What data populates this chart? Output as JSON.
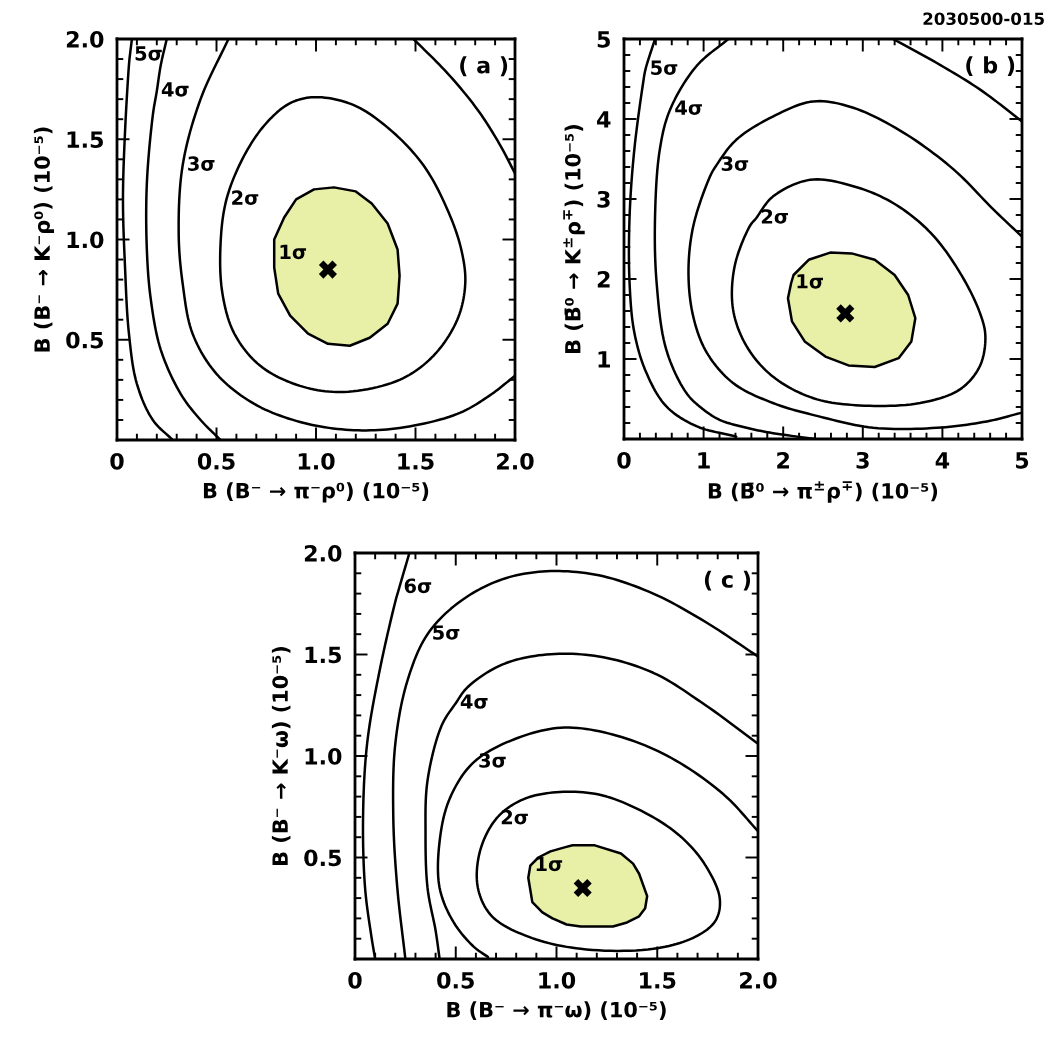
{
  "chart_data": [
    {
      "type": "line",
      "xlabel": "B (B⁻ → π⁻ρ⁰) (10⁻⁵)",
      "ylabel": "B (B⁻ → K⁻ρ⁰) (10⁻⁵)",
      "xlim": [
        0,
        2
      ],
      "ylim": [
        0,
        2
      ],
      "xticks": [
        0,
        {
          "value": 0.1,
          "label": null
        },
        {
          "value": 0.2,
          "label": null
        },
        {
          "value": 0.3,
          "label": null
        },
        {
          "value": 0.4,
          "label": null
        },
        0.5,
        {
          "value": 0.6,
          "label": null
        },
        {
          "value": 0.7,
          "label": null
        },
        {
          "value": 0.8,
          "label": null
        },
        {
          "value": 0.9,
          "label": null
        },
        {
          "value": 1,
          "label": "1.0"
        },
        {
          "value": 1.1,
          "label": null
        },
        {
          "value": 1.2,
          "label": null
        },
        {
          "value": 1.3,
          "label": null
        },
        {
          "value": 1.4,
          "label": null
        },
        1.5,
        {
          "value": 1.6,
          "label": null
        },
        {
          "value": 1.7,
          "label": null
        },
        {
          "value": 1.8,
          "label": null
        },
        {
          "value": 1.9,
          "label": null
        },
        {
          "value": 2,
          "label": "2.0"
        }
      ],
      "yticks": [
        {
          "value": 0.1,
          "label": null
        },
        {
          "value": 0.2,
          "label": null
        },
        {
          "value": 0.3,
          "label": null
        },
        {
          "value": 0.4,
          "label": null
        },
        0.5,
        {
          "value": 0.6,
          "label": null
        },
        {
          "value": 0.7,
          "label": null
        },
        {
          "value": 0.8,
          "label": null
        },
        {
          "value": 0.9,
          "label": null
        },
        {
          "value": 1,
          "label": "1.0"
        },
        {
          "value": 1.1,
          "label": null
        },
        {
          "value": 1.2,
          "label": null
        },
        {
          "value": 1.3,
          "label": null
        },
        {
          "value": 1.4,
          "label": null
        },
        1.5,
        {
          "value": 1.6,
          "label": null
        },
        {
          "value": 1.7,
          "label": null
        },
        {
          "value": 1.8,
          "label": null
        },
        {
          "value": 1.9,
          "label": null
        },
        {
          "value": 2,
          "label": "2.0"
        }
      ],
      "annotations": [
        "( a )",
        {
          "text": "1σ",
          "x": 0.79,
          "y": 0.93
        },
        {
          "text": "2σ",
          "x": 0.55,
          "y": 1.2
        },
        {
          "text": "3σ",
          "x": 0.33,
          "y": 1.37
        },
        {
          "text": "4σ",
          "x": 0.2,
          "y": 1.74
        },
        {
          "text": "5σ",
          "x": 0.065,
          "y": 1.92
        }
      ],
      "series": [
        {
          "type": "area",
          "color": "#e8f0a8",
          "x": [
            1.09,
            1.2,
            1.28,
            1.36,
            1.41,
            1.42,
            1.41,
            1.36,
            1.27,
            1.17,
            1.06,
            0.96,
            0.87,
            0.81,
            0.79,
            0.79,
            0.79,
            0.84,
            0.9,
            0.99
          ],
          "values": [
            1.26,
            1.24,
            1.18,
            1.08,
            0.95,
            0.82,
            0.68,
            0.58,
            0.51,
            0.47,
            0.48,
            0.53,
            0.62,
            0.73,
            0.86,
            0.93,
            1.0,
            1.11,
            1.2,
            1.25
          ]
        },
        {
          "color": "#000000",
          "x": [
            1.0,
            1.19,
            1.37,
            1.54,
            1.66,
            1.73,
            1.75,
            1.71,
            1.59,
            1.42,
            1.14,
            0.92,
            0.72,
            0.59,
            0.53,
            0.52,
            0.55,
            0.64,
            0.75,
            0.87,
            1.0
          ],
          "values": [
            1.71,
            1.67,
            1.55,
            1.37,
            1.15,
            0.95,
            0.78,
            0.6,
            0.42,
            0.3,
            0.24,
            0.27,
            0.37,
            0.53,
            0.73,
            0.97,
            1.2,
            1.42,
            1.58,
            1.68,
            1.71
          ]
        },
        {
          "color": "#000000",
          "x": [
            0.56,
            0.42,
            0.33,
            0.31,
            0.33,
            0.38,
            0.5,
            0.69,
            0.92,
            1.17,
            1.42,
            1.71,
            1.87,
            2.0,
            null,
            1.49,
            1.66,
            1.81,
            1.92,
            2.0
          ],
          "values": [
            2.0,
            1.7,
            1.37,
            1.03,
            0.78,
            0.53,
            0.33,
            0.18,
            0.09,
            0.05,
            0.06,
            0.13,
            0.22,
            0.32,
            null,
            2.0,
            1.83,
            1.65,
            1.48,
            1.33
          ]
        },
        {
          "color": "#000000",
          "x": [
            0.25,
            0.22,
            0.2,
            0.18,
            0.15,
            0.15,
            0.17,
            0.22,
            0.32,
            0.42,
            0.52
          ],
          "values": [
            2.0,
            1.87,
            1.74,
            1.62,
            1.28,
            0.95,
            0.7,
            0.45,
            0.23,
            0.1,
            0.0
          ]
        },
        {
          "color": "#000000",
          "x": [
            0.075,
            0.065,
            0.06,
            0.04,
            0.03,
            0.04,
            0.06,
            0.1,
            0.18,
            0.28
          ],
          "values": [
            2.0,
            1.92,
            1.87,
            1.53,
            1.2,
            0.87,
            0.53,
            0.28,
            0.1,
            0.0
          ]
        },
        {
          "type": "scatter",
          "marker": "cross",
          "color": "#000000",
          "x": [
            1.06
          ],
          "values": [
            0.85
          ]
        }
      ]
    },
    {
      "type": "line",
      "xlabel": "B (B̄⁰ → π$^{±}$ρ$^{∓}$) (10⁻⁵)",
      "ylabel": "B (B̄⁰ → K$^{±}$ρ$^{∓}$) (10⁻⁵)",
      "xlim": [
        0,
        5
      ],
      "ylim": [
        0,
        5
      ],
      "xticks": [
        0,
        {
          "value": 0.2,
          "label": null
        },
        {
          "value": 0.4,
          "label": null
        },
        {
          "value": 0.6,
          "label": null
        },
        {
          "value": 0.8,
          "label": null
        },
        1,
        {
          "value": 1.2,
          "label": null
        },
        {
          "value": 1.4,
          "label": null
        },
        {
          "value": 1.6,
          "label": null
        },
        {
          "value": 1.8,
          "label": null
        },
        2,
        {
          "value": 2.2,
          "label": null
        },
        {
          "value": 2.4,
          "label": null
        },
        {
          "value": 2.6,
          "label": null
        },
        {
          "value": 2.8,
          "label": null
        },
        3,
        {
          "value": 3.2,
          "label": null
        },
        {
          "value": 3.4,
          "label": null
        },
        {
          "value": 3.6,
          "label": null
        },
        {
          "value": 3.8,
          "label": null
        },
        4,
        {
          "value": 4.2,
          "label": null
        },
        {
          "value": 4.4,
          "label": null
        },
        {
          "value": 4.6,
          "label": null
        },
        {
          "value": 4.8,
          "label": null
        },
        5
      ],
      "yticks": [
        {
          "value": 0.2,
          "label": null
        },
        {
          "value": 0.4,
          "label": null
        },
        {
          "value": 0.6,
          "label": null
        },
        {
          "value": 0.8,
          "label": null
        },
        1,
        {
          "value": 1.2,
          "label": null
        },
        {
          "value": 1.4,
          "label": null
        },
        {
          "value": 1.6,
          "label": null
        },
        {
          "value": 1.8,
          "label": null
        },
        2,
        {
          "value": 2.2,
          "label": null
        },
        {
          "value": 2.4,
          "label": null
        },
        {
          "value": 2.6,
          "label": null
        },
        {
          "value": 2.8,
          "label": null
        },
        3,
        {
          "value": 3.2,
          "label": null
        },
        {
          "value": 3.4,
          "label": null
        },
        {
          "value": 3.6,
          "label": null
        },
        {
          "value": 3.8,
          "label": null
        },
        4,
        {
          "value": 4.2,
          "label": null
        },
        {
          "value": 4.4,
          "label": null
        },
        {
          "value": 4.6,
          "label": null
        },
        {
          "value": 4.8,
          "label": null
        },
        5
      ],
      "annotations": [
        "( b )",
        "2030500-015",
        {
          "text": "1σ",
          "x": 2.1,
          "y": 1.95
        },
        {
          "text": "2σ",
          "x": 1.66,
          "y": 2.76
        },
        {
          "text": "3σ",
          "x": 1.16,
          "y": 3.42
        },
        {
          "text": "4σ",
          "x": 0.58,
          "y": 4.12
        },
        {
          "text": "5σ",
          "x": 0.27,
          "y": 4.62
        }
      ],
      "series": [
        {
          "type": "area",
          "color": "#e8f0a8",
          "x": [
            2.86,
            3.15,
            3.4,
            3.57,
            3.66,
            3.61,
            3.45,
            3.15,
            2.82,
            2.53,
            2.27,
            2.11,
            2.06,
            2.1,
            2.13,
            2.32,
            2.59
          ],
          "values": [
            2.32,
            2.24,
            2.05,
            1.8,
            1.51,
            1.22,
            1.01,
            0.9,
            0.92,
            1.03,
            1.22,
            1.47,
            1.76,
            1.95,
            2.05,
            2.24,
            2.33
          ]
        },
        {
          "color": "#000000",
          "x": [
            2.34,
            2.88,
            3.38,
            3.85,
            4.22,
            4.47,
            4.54,
            4.47,
            4.22,
            3.72,
            2.96,
            2.38,
            1.87,
            1.54,
            1.37,
            1.39,
            1.58,
            1.66,
            1.87,
            2.34
          ],
          "values": [
            3.24,
            3.16,
            2.95,
            2.58,
            2.08,
            1.58,
            1.28,
            0.91,
            0.62,
            0.45,
            0.42,
            0.51,
            0.78,
            1.16,
            1.62,
            2.16,
            2.66,
            2.76,
            3.03,
            3.24
          ]
        },
        {
          "color": "#000000",
          "x": [
            5.0,
            4.64,
            4.14,
            3.51,
            2.88,
            2.38,
            1.87,
            1.41,
            1.16,
            1.08,
            0.87,
            0.81,
            0.87,
            1.04,
            1.37,
            1.87,
            2.46,
            3.13,
            3.93,
            4.56,
            5.0
          ],
          "values": [
            2.53,
            2.87,
            3.37,
            3.83,
            4.14,
            4.22,
            4.03,
            3.74,
            3.42,
            3.28,
            2.66,
            2.08,
            1.53,
            1.08,
            0.7,
            0.45,
            0.28,
            0.14,
            0.14,
            0.22,
            0.33
          ]
        },
        {
          "color": "#000000",
          "x": [
            1.31,
            0.91,
            0.58,
            0.45,
            0.39,
            0.41,
            0.53,
            0.78,
            0.97,
            1.2,
            1.5,
            1.83,
            2.4,
            null,
            3.38,
            3.93,
            4.47,
            5.0
          ],
          "values": [
            5.0,
            4.66,
            4.12,
            3.62,
            2.78,
            1.95,
            1.12,
            0.58,
            0.39,
            0.24,
            0.15,
            0.08,
            0.0,
            null,
            5.0,
            4.7,
            4.37,
            3.97
          ]
        },
        {
          "color": "#000000",
          "x": [
            0.39,
            0.27,
            0.24,
            0.13,
            0.07,
            0.07,
            0.13,
            0.28,
            0.53,
            0.91,
            1.41
          ],
          "values": [
            5.0,
            4.62,
            4.45,
            3.62,
            2.78,
            1.95,
            1.33,
            0.83,
            0.41,
            0.16,
            0.03
          ]
        },
        {
          "type": "scatter",
          "marker": "cross",
          "color": "#000000",
          "x": [
            2.78
          ],
          "values": [
            1.57
          ]
        }
      ]
    },
    {
      "type": "line",
      "xlabel": "B (B⁻ → π⁻ω) (10⁻⁵)",
      "ylabel": "B (B⁻ → K⁻ω) (10⁻⁵)",
      "xlim": [
        0,
        2
      ],
      "ylim": [
        0,
        2
      ],
      "xticks": [
        0,
        {
          "value": 0.1,
          "label": null
        },
        {
          "value": 0.2,
          "label": null
        },
        {
          "value": 0.3,
          "label": null
        },
        {
          "value": 0.4,
          "label": null
        },
        0.5,
        {
          "value": 0.6,
          "label": null
        },
        {
          "value": 0.7,
          "label": null
        },
        {
          "value": 0.8,
          "label": null
        },
        {
          "value": 0.9,
          "label": null
        },
        {
          "value": 1,
          "label": "1.0"
        },
        {
          "value": 1.1,
          "label": null
        },
        {
          "value": 1.2,
          "label": null
        },
        {
          "value": 1.3,
          "label": null
        },
        {
          "value": 1.4,
          "label": null
        },
        1.5,
        {
          "value": 1.6,
          "label": null
        },
        {
          "value": 1.7,
          "label": null
        },
        {
          "value": 1.8,
          "label": null
        },
        {
          "value": 1.9,
          "label": null
        },
        {
          "value": 2,
          "label": "2.0"
        }
      ],
      "yticks": [
        {
          "value": 0.1,
          "label": null
        },
        {
          "value": 0.2,
          "label": null
        },
        {
          "value": 0.3,
          "label": null
        },
        {
          "value": 0.4,
          "label": null
        },
        0.5,
        {
          "value": 0.6,
          "label": null
        },
        {
          "value": 0.7,
          "label": null
        },
        {
          "value": 0.8,
          "label": null
        },
        {
          "value": 0.9,
          "label": null
        },
        {
          "value": 1,
          "label": "1.0"
        },
        {
          "value": 1.1,
          "label": null
        },
        {
          "value": 1.2,
          "label": null
        },
        {
          "value": 1.3,
          "label": null
        },
        {
          "value": 1.4,
          "label": null
        },
        1.5,
        {
          "value": 1.6,
          "label": null
        },
        {
          "value": 1.7,
          "label": null
        },
        {
          "value": 1.8,
          "label": null
        },
        {
          "value": 1.9,
          "label": null
        },
        {
          "value": 2,
          "label": "2.0"
        }
      ],
      "annotations": [
        "( c )",
        {
          "text": "1σ",
          "x": 0.87,
          "y": 0.46
        },
        {
          "text": "2σ",
          "x": 0.7,
          "y": 0.69
        },
        {
          "text": "3σ",
          "x": 0.59,
          "y": 0.97
        },
        {
          "text": "4σ",
          "x": 0.5,
          "y": 1.26
        },
        {
          "text": "5σ",
          "x": 0.36,
          "y": 1.6
        },
        {
          "text": "6σ",
          "x": 0.22,
          "y": 1.83
        }
      ],
      "series": [
        {
          "type": "area",
          "color": "#e8f0a8",
          "x": [
            1.19,
            1.32,
            1.38,
            1.41,
            1.45,
            1.44,
            1.41,
            1.35,
            1.28,
            1.12,
            1.05,
            0.98,
            0.93,
            0.88,
            0.86,
            0.87,
            0.91,
            0.97,
            1.04,
            1.08
          ],
          "values": [
            0.56,
            0.52,
            0.47,
            0.42,
            0.31,
            0.25,
            0.21,
            0.18,
            0.16,
            0.16,
            0.17,
            0.2,
            0.23,
            0.28,
            0.4,
            0.46,
            0.5,
            0.53,
            0.55,
            0.56
          ]
        },
        {
          "color": "#000000",
          "x": [
            0.98,
            1.21,
            1.44,
            1.62,
            1.74,
            1.81,
            1.79,
            1.69,
            1.48,
            1.12,
            0.86,
            0.68,
            0.61,
            0.62,
            0.7,
            0.82,
            0.98
          ],
          "values": [
            0.82,
            0.81,
            0.72,
            0.6,
            0.46,
            0.3,
            0.19,
            0.11,
            0.05,
            0.05,
            0.11,
            0.21,
            0.35,
            0.53,
            0.69,
            0.78,
            0.82
          ]
        },
        {
          "color": "#000000",
          "x": [
            2.0,
            1.83,
            1.57,
            1.3,
            1.04,
            0.81,
            0.59,
            0.47,
            0.42,
            0.42,
            0.49,
            0.59,
            0.66
          ],
          "values": [
            0.63,
            0.81,
            0.99,
            1.1,
            1.14,
            1.09,
            0.97,
            0.79,
            0.58,
            0.35,
            0.18,
            0.06,
            0.01
          ]
        },
        {
          "color": "#000000",
          "x": [
            2.0,
            1.74,
            1.48,
            1.21,
            0.95,
            0.73,
            0.56,
            0.5,
            0.43,
            0.36,
            0.35,
            0.36,
            0.4,
            0.42
          ],
          "values": [
            1.06,
            1.25,
            1.41,
            1.49,
            1.5,
            1.45,
            1.34,
            1.26,
            1.15,
            0.88,
            0.62,
            0.35,
            0.14,
            0.0
          ]
        },
        {
          "color": "#000000",
          "x": [
            2.0,
            1.74,
            1.48,
            1.21,
            0.95,
            0.73,
            0.52,
            0.36,
            0.26,
            0.2,
            0.19,
            0.21,
            0.25
          ],
          "values": [
            1.49,
            1.66,
            1.8,
            1.89,
            1.91,
            1.87,
            1.76,
            1.6,
            1.37,
            1.06,
            0.7,
            0.35,
            0.0
          ]
        },
        {
          "color": "#000000",
          "x": [
            0.27,
            0.22,
            0.2,
            0.12,
            0.06,
            0.04,
            0.05,
            0.08,
            0.1
          ],
          "values": [
            2.0,
            1.83,
            1.76,
            1.41,
            1.06,
            0.7,
            0.35,
            0.12,
            0.0
          ]
        },
        {
          "type": "scatter",
          "marker": "cross",
          "color": "#000000",
          "x": [
            1.13
          ],
          "values": [
            0.35
          ]
        }
      ]
    }
  ]
}
